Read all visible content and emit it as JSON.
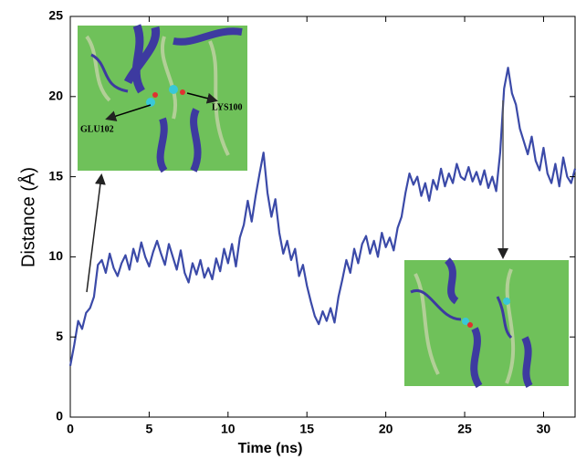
{
  "chart_data": {
    "type": "line",
    "x_label": "Time (ns)",
    "y_label": "Distance (Å)",
    "xlim": [
      0,
      32
    ],
    "ylim": [
      0,
      25
    ],
    "xticks": [
      0,
      5,
      10,
      15,
      20,
      25,
      30
    ],
    "yticks": [
      0,
      5,
      10,
      15,
      20,
      25
    ],
    "annotations": [
      "GLU102",
      "LYS100"
    ],
    "series": [
      {
        "color": "#3b4aa8",
        "x": [
          0,
          0.25,
          0.5,
          0.75,
          1,
          1.25,
          1.5,
          1.75,
          2,
          2.25,
          2.5,
          2.75,
          3,
          3.25,
          3.5,
          3.75,
          4,
          4.25,
          4.5,
          4.75,
          5,
          5.25,
          5.5,
          5.75,
          6,
          6.25,
          6.5,
          6.75,
          7,
          7.25,
          7.5,
          7.75,
          8,
          8.25,
          8.5,
          8.75,
          9,
          9.25,
          9.5,
          9.75,
          10,
          10.25,
          10.5,
          10.75,
          11,
          11.25,
          11.5,
          11.75,
          12,
          12.25,
          12.5,
          12.75,
          13,
          13.25,
          13.5,
          13.75,
          14,
          14.25,
          14.5,
          14.75,
          15,
          15.25,
          15.5,
          15.75,
          16,
          16.25,
          16.5,
          16.75,
          17,
          17.25,
          17.5,
          17.75,
          18,
          18.25,
          18.5,
          18.75,
          19,
          19.25,
          19.5,
          19.75,
          20,
          20.25,
          20.5,
          20.75,
          21,
          21.25,
          21.5,
          21.75,
          22,
          22.25,
          22.5,
          22.75,
          23,
          23.25,
          23.5,
          23.75,
          24,
          24.25,
          24.5,
          24.75,
          25,
          25.25,
          25.5,
          25.75,
          26,
          26.25,
          26.5,
          26.75,
          27,
          27.25,
          27.5,
          27.75,
          28,
          28.25,
          28.5,
          28.75,
          29,
          29.25,
          29.5,
          29.75,
          30,
          30.25,
          30.5,
          30.75,
          31,
          31.25,
          31.5,
          31.75,
          32
        ],
        "values": [
          3.2,
          4.5,
          6.0,
          5.5,
          6.5,
          6.8,
          7.5,
          9.5,
          9.8,
          9.0,
          10.2,
          9.3,
          8.8,
          9.6,
          10.1,
          9.2,
          10.5,
          9.7,
          10.9,
          10.0,
          9.4,
          10.3,
          11.0,
          10.2,
          9.5,
          10.8,
          10.0,
          9.2,
          10.4,
          9.0,
          8.4,
          9.6,
          8.9,
          9.8,
          8.7,
          9.3,
          8.6,
          9.9,
          9.1,
          10.5,
          9.6,
          10.8,
          9.4,
          11.2,
          12.0,
          13.5,
          12.2,
          13.8,
          15.2,
          16.5,
          14.0,
          12.5,
          13.6,
          11.5,
          10.2,
          11.0,
          9.8,
          10.5,
          8.8,
          9.5,
          8.2,
          7.2,
          6.3,
          5.8,
          6.6,
          6.0,
          6.8,
          5.9,
          7.5,
          8.6,
          9.8,
          9.0,
          10.5,
          9.6,
          10.8,
          11.3,
          10.2,
          11.0,
          10.0,
          11.5,
          10.6,
          11.2,
          10.4,
          11.8,
          12.5,
          14.0,
          15.2,
          14.5,
          15.0,
          13.8,
          14.6,
          13.5,
          14.8,
          14.2,
          15.5,
          14.4,
          15.2,
          14.6,
          15.8,
          15.0,
          14.8,
          15.6,
          14.7,
          15.3,
          14.5,
          15.4,
          14.3,
          15.0,
          14.1,
          16.5,
          20.5,
          21.8,
          20.2,
          19.5,
          18.0,
          17.2,
          16.4,
          17.5,
          16.0,
          15.4,
          16.8,
          15.2,
          14.6,
          15.8,
          14.4,
          16.2,
          15.0,
          14.6,
          15.5
        ]
      }
    ]
  }
}
